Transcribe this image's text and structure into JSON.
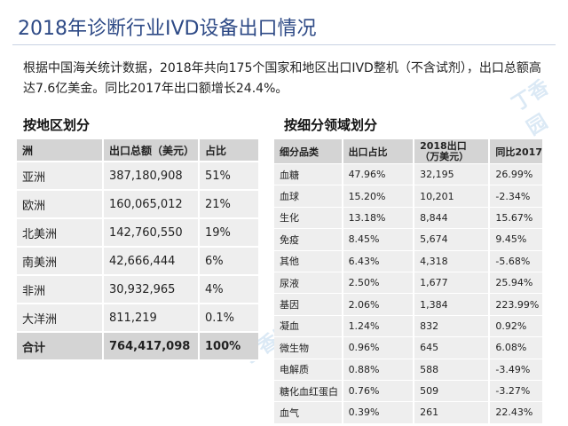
{
  "title": "2018年诊断行业IVD设备出口情况",
  "intro": "根据中国海关统计数据，2018年共向175个国家和地区出口IVD整机（不含试剂），出口总额高达7.6亿美金。同比2017年出口额增长24.4%。",
  "watermark": "丁香园",
  "region_section": {
    "title": "按地区划分",
    "headers": [
      "洲",
      "出口总额（美元）",
      "占比"
    ],
    "rows": [
      [
        "亚洲",
        "387,180,908",
        "51%"
      ],
      [
        "欧洲",
        "160,065,012",
        "21%"
      ],
      [
        "北美洲",
        "142,760,550",
        "19%"
      ],
      [
        "南美洲",
        "42,666,444",
        "6%"
      ],
      [
        "非洲",
        "30,932,965",
        "4%"
      ],
      [
        "大洋洲",
        "811,219",
        "0.1%"
      ]
    ],
    "total": [
      "合计",
      "764,417,098",
      "100%"
    ]
  },
  "segment_section": {
    "title": "按细分领域划分",
    "headers": [
      "细分品类",
      "出口占比",
      "2018出口",
      "（万美元）",
      "同比2017"
    ],
    "rows": [
      [
        "血糖",
        "47.96%",
        "32,195",
        "26.99%"
      ],
      [
        "血球",
        "15.20%",
        "10,201",
        "-2.34%"
      ],
      [
        "生化",
        "13.18%",
        "8,844",
        "15.67%"
      ],
      [
        "免疫",
        "8.45%",
        "5,674",
        "9.45%"
      ],
      [
        "其他",
        "6.43%",
        "4,318",
        "-5.68%"
      ],
      [
        "尿液",
        "2.50%",
        "1,677",
        "25.94%"
      ],
      [
        "基因",
        "2.06%",
        "1,384",
        "223.99%"
      ],
      [
        "凝血",
        "1.24%",
        "832",
        "0.92%"
      ],
      [
        "微生物",
        "0.96%",
        "645",
        "6.08%"
      ],
      [
        "电解质",
        "0.88%",
        "588",
        "-3.49%"
      ],
      [
        "糖化血红蛋白",
        "0.76%",
        "509",
        "-3.27%"
      ],
      [
        "血气",
        "0.39%",
        "261",
        "22.43%"
      ]
    ]
  }
}
